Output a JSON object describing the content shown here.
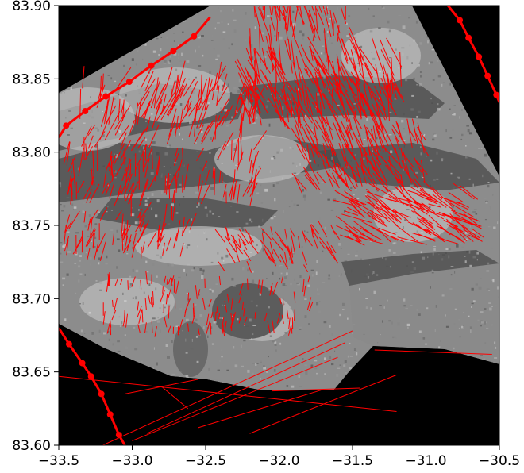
{
  "chart_data": {
    "type": "scatter",
    "title": "",
    "xlabel": "",
    "ylabel": "",
    "xlim": [
      -33.5,
      -30.5
    ],
    "ylim": [
      83.6,
      83.9
    ],
    "grid": false,
    "xticks": [
      "-33.5",
      "-33.0",
      "-32.5",
      "-32.0",
      "-31.5",
      "-31.0",
      "-30.5"
    ],
    "yticks": [
      "83.60",
      "83.65",
      "83.70",
      "83.75",
      "83.80",
      "83.85",
      "83.90"
    ],
    "background": "grayscale satellite image of sea ice over black no-data area",
    "vector_color": "#ff0000",
    "tracks": [
      {
        "x": [
          -33.5,
          -33.45,
          -33.32,
          -33.18,
          -33.02,
          -32.87,
          -32.72,
          -32.58,
          -32.47
        ],
        "y": [
          83.81,
          83.818,
          83.828,
          83.838,
          83.848,
          83.859,
          83.869,
          83.879,
          83.892
        ]
      },
      {
        "x": [
          -33.5,
          -33.43,
          -33.34,
          -33.28,
          -33.21,
          -33.15,
          -33.09,
          -33.05
        ],
        "y": [
          83.68,
          83.669,
          83.656,
          83.647,
          83.635,
          83.621,
          83.607,
          83.6
        ]
      },
      {
        "x": [
          -30.85,
          -30.77,
          -30.71,
          -30.64,
          -30.58,
          -30.52,
          -30.5
        ],
        "y": [
          83.9,
          83.89,
          83.878,
          83.865,
          83.852,
          83.839,
          83.834
        ]
      }
    ],
    "long_vectors": [
      {
        "x1": -33.5,
        "y1": 83.647,
        "x2": -31.2,
        "y2": 83.623
      },
      {
        "x1": -32.05,
        "y1": 83.637,
        "x2": -31.45,
        "y2": 83.639
      },
      {
        "x1": -31.35,
        "y1": 83.665,
        "x2": -30.55,
        "y2": 83.662
      },
      {
        "x1": -33.05,
        "y1": 83.635,
        "x2": -32.55,
        "y2": 83.645
      },
      {
        "x1": -32.8,
        "y1": 83.64,
        "x2": -32.62,
        "y2": 83.625
      },
      {
        "x1": -33.2,
        "y1": 83.6,
        "x2": -31.5,
        "y2": 83.678
      },
      {
        "x1": -33.0,
        "y1": 83.603,
        "x2": -31.6,
        "y2": 83.66
      },
      {
        "x1": -32.9,
        "y1": 83.608,
        "x2": -31.55,
        "y2": 83.67
      },
      {
        "x1": -32.55,
        "y1": 83.612,
        "x2": -31.7,
        "y2": 83.638
      },
      {
        "x1": -32.2,
        "y1": 83.608,
        "x2": -31.2,
        "y2": 83.648
      }
    ]
  }
}
